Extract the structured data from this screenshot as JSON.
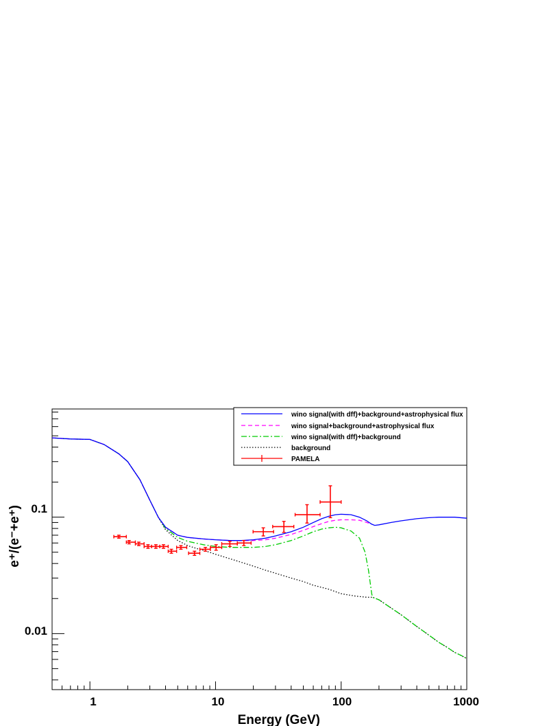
{
  "chart_data": {
    "type": "line",
    "xlabel": "Energy (GeV)",
    "ylabel": "e⁺/(e⁻+e⁺)",
    "xscale": "log",
    "yscale": "log",
    "xlim": [
      0.5,
      1000
    ],
    "ylim": [
      0.0033,
      0.85
    ],
    "grid": false,
    "legend_position": "top-right",
    "x_tick_labels": [
      "1",
      "10",
      "100",
      "1000"
    ],
    "y_tick_labels": [
      "0.01",
      "0.1"
    ],
    "x_ticks": [
      1,
      10,
      100,
      1000
    ],
    "y_ticks": [
      0.01,
      0.1
    ],
    "series": [
      {
        "name": "wino signal(with dff)+background+astrophysical flux",
        "color": "#0000ff",
        "style": "solid",
        "x": [
          0.5,
          0.7,
          1.0,
          1.3,
          1.7,
          2.0,
          2.5,
          3.0,
          3.5,
          4.0,
          5.0,
          6.0,
          8.0,
          10,
          13,
          16,
          20,
          25,
          30,
          40,
          50,
          60,
          70,
          80,
          90,
          100,
          120,
          140,
          160,
          175,
          185,
          200,
          250,
          300,
          400,
          500,
          600,
          700,
          800,
          1000
        ],
        "y": [
          0.48,
          0.47,
          0.465,
          0.42,
          0.35,
          0.3,
          0.21,
          0.14,
          0.1,
          0.082,
          0.07,
          0.067,
          0.065,
          0.064,
          0.063,
          0.063,
          0.064,
          0.066,
          0.069,
          0.075,
          0.082,
          0.09,
          0.097,
          0.102,
          0.105,
          0.106,
          0.105,
          0.1,
          0.093,
          0.087,
          0.085,
          0.086,
          0.09,
          0.093,
          0.097,
          0.099,
          0.1,
          0.1,
          0.1,
          0.098
        ]
      },
      {
        "name": "wino signal+background+astrophysical flux",
        "color": "#ff00ff",
        "style": "dashed",
        "x": [
          0.5,
          0.7,
          1.0,
          1.3,
          1.7,
          2.0,
          2.5,
          3.0,
          3.5,
          4.0,
          5.0,
          6.0,
          8.0,
          10,
          13,
          16,
          20,
          25,
          30,
          40,
          50,
          60,
          70,
          80,
          90,
          100,
          120,
          140,
          160,
          175
        ],
        "y": [
          0.48,
          0.47,
          0.465,
          0.42,
          0.35,
          0.3,
          0.21,
          0.14,
          0.1,
          0.082,
          0.07,
          0.067,
          0.065,
          0.064,
          0.063,
          0.063,
          0.063,
          0.064,
          0.066,
          0.071,
          0.077,
          0.083,
          0.088,
          0.092,
          0.094,
          0.095,
          0.095,
          0.094,
          0.09,
          0.087
        ]
      },
      {
        "name": "wino signal(with dff)+background",
        "color": "#00cc00",
        "style": "dash-dot",
        "x": [
          0.5,
          0.7,
          1.0,
          1.3,
          1.7,
          2.0,
          2.5,
          3.0,
          3.5,
          4.0,
          5.0,
          6.0,
          8.0,
          10,
          13,
          16,
          20,
          25,
          30,
          40,
          50,
          60,
          70,
          80,
          90,
          100,
          120,
          140,
          155,
          165,
          175,
          178,
          200,
          300,
          400,
          500,
          600,
          700,
          800,
          900,
          1000
        ],
        "y": [
          0.48,
          0.47,
          0.465,
          0.42,
          0.35,
          0.3,
          0.21,
          0.14,
          0.1,
          0.08,
          0.067,
          0.062,
          0.058,
          0.056,
          0.055,
          0.055,
          0.055,
          0.056,
          0.058,
          0.063,
          0.069,
          0.075,
          0.079,
          0.081,
          0.082,
          0.081,
          0.076,
          0.066,
          0.05,
          0.035,
          0.022,
          0.0205,
          0.0195,
          0.0145,
          0.0115,
          0.0097,
          0.0084,
          0.0076,
          0.0069,
          0.0065,
          0.0061
        ]
      },
      {
        "name": "background",
        "color": "#000000",
        "style": "dotted",
        "x": [
          0.5,
          0.7,
          1.0,
          1.3,
          1.7,
          2.0,
          2.5,
          3.0,
          3.5,
          4.0,
          5.0,
          6.0,
          7.0,
          8.0,
          10,
          13,
          16,
          20,
          25,
          30,
          40,
          50,
          60,
          80,
          100,
          130,
          160,
          178,
          200,
          300,
          400,
          500,
          600,
          700,
          800,
          900,
          1000
        ],
        "y": [
          0.48,
          0.47,
          0.465,
          0.42,
          0.35,
          0.3,
          0.21,
          0.14,
          0.1,
          0.078,
          0.063,
          0.057,
          0.054,
          0.052,
          0.048,
          0.044,
          0.041,
          0.038,
          0.035,
          0.033,
          0.03,
          0.028,
          0.026,
          0.024,
          0.022,
          0.021,
          0.0205,
          0.0205,
          0.0195,
          0.0145,
          0.0115,
          0.0097,
          0.0084,
          0.0076,
          0.0069,
          0.0065,
          0.0061
        ]
      }
    ],
    "points": {
      "name": "PAMELA",
      "color": "#ff0000",
      "data": [
        {
          "x": 1.7,
          "xlo": 1.55,
          "xhi": 1.95,
          "y": 0.068,
          "ylo": 0.066,
          "yhi": 0.07
        },
        {
          "x": 2.05,
          "xlo": 1.95,
          "xhi": 2.3,
          "y": 0.061,
          "ylo": 0.059,
          "yhi": 0.063
        },
        {
          "x": 2.45,
          "xlo": 2.3,
          "xhi": 2.7,
          "y": 0.059,
          "ylo": 0.057,
          "yhi": 0.061
        },
        {
          "x": 2.9,
          "xlo": 2.7,
          "xhi": 3.1,
          "y": 0.056,
          "ylo": 0.054,
          "yhi": 0.058
        },
        {
          "x": 3.35,
          "xlo": 3.1,
          "xhi": 3.6,
          "y": 0.056,
          "ylo": 0.054,
          "yhi": 0.058
        },
        {
          "x": 3.85,
          "xlo": 3.6,
          "xhi": 4.2,
          "y": 0.056,
          "ylo": 0.054,
          "yhi": 0.058
        },
        {
          "x": 4.45,
          "xlo": 4.2,
          "xhi": 4.9,
          "y": 0.051,
          "ylo": 0.049,
          "yhi": 0.053
        },
        {
          "x": 5.3,
          "xlo": 4.9,
          "xhi": 5.9,
          "y": 0.055,
          "ylo": 0.053,
          "yhi": 0.057
        },
        {
          "x": 6.8,
          "xlo": 6.1,
          "xhi": 7.5,
          "y": 0.049,
          "ylo": 0.047,
          "yhi": 0.051
        },
        {
          "x": 8.3,
          "xlo": 7.5,
          "xhi": 9.1,
          "y": 0.053,
          "ylo": 0.051,
          "yhi": 0.055
        },
        {
          "x": 10.1,
          "xlo": 9.1,
          "xhi": 11.2,
          "y": 0.055,
          "ylo": 0.052,
          "yhi": 0.058
        },
        {
          "x": 13.0,
          "xlo": 11.2,
          "xhi": 14.9,
          "y": 0.059,
          "ylo": 0.056,
          "yhi": 0.062
        },
        {
          "x": 16.8,
          "xlo": 14.9,
          "xhi": 19.2,
          "y": 0.06,
          "ylo": 0.057,
          "yhi": 0.063
        },
        {
          "x": 24.0,
          "xlo": 19.9,
          "xhi": 29.0,
          "y": 0.075,
          "ylo": 0.069,
          "yhi": 0.081
        },
        {
          "x": 35.0,
          "xlo": 28.5,
          "xhi": 42.0,
          "y": 0.083,
          "ylo": 0.074,
          "yhi": 0.092
        },
        {
          "x": 53.5,
          "xlo": 43.0,
          "xhi": 68.0,
          "y": 0.105,
          "ylo": 0.089,
          "yhi": 0.128
        },
        {
          "x": 82.0,
          "xlo": 68.0,
          "xhi": 100.0,
          "y": 0.135,
          "ylo": 0.099,
          "yhi": 0.186
        }
      ]
    }
  }
}
